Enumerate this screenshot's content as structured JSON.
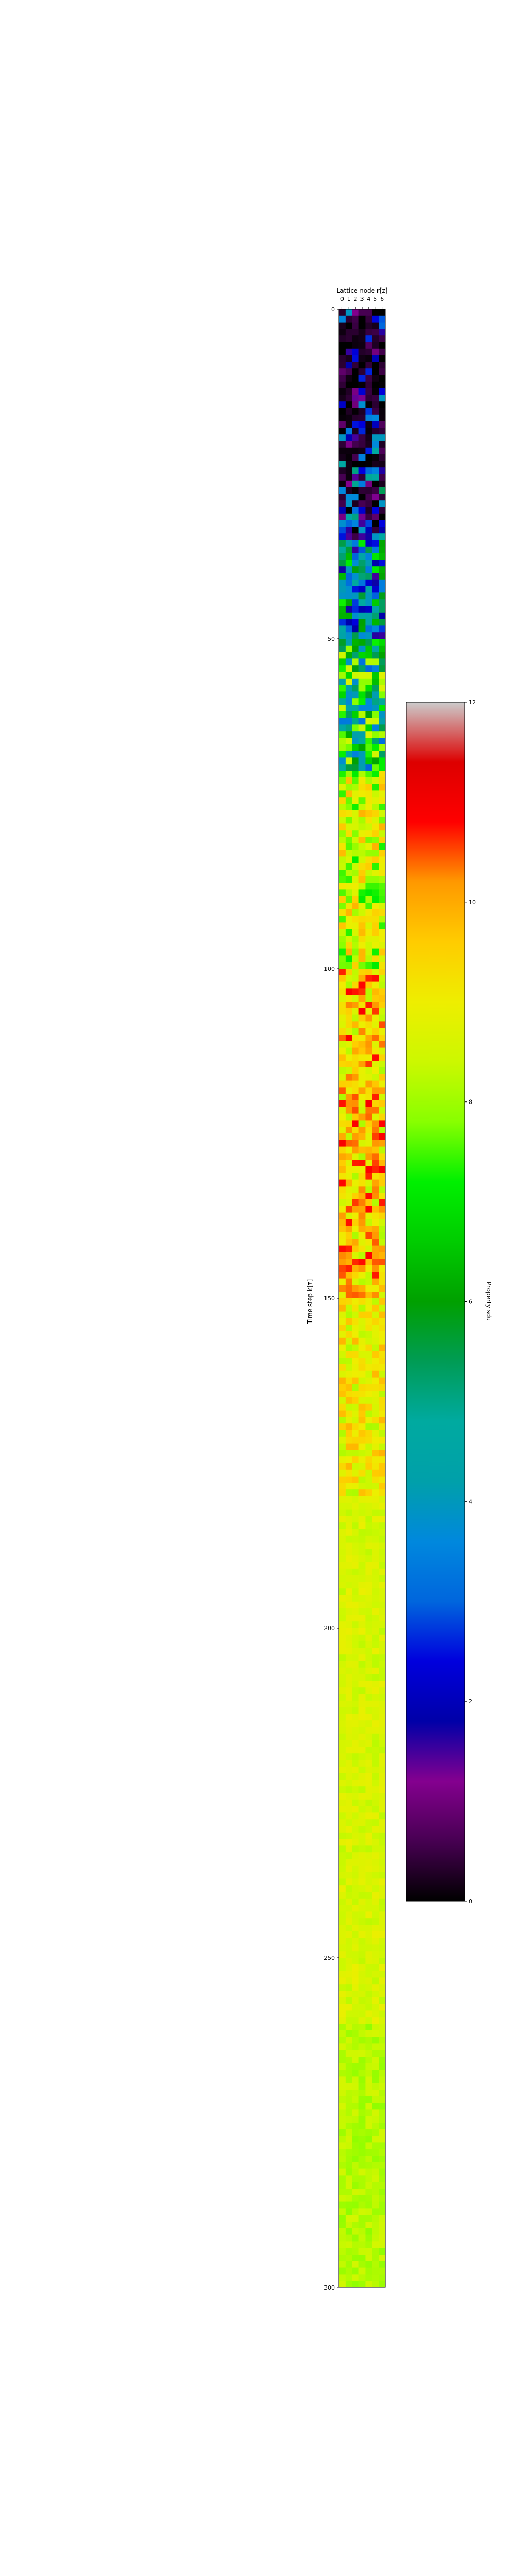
{
  "chart_data": {
    "type": "heatmap",
    "title": "",
    "xlabel": "Lattice node r[z]",
    "ylabel": "Time step k[τ]",
    "x_ticks": [
      "0",
      "1",
      "2",
      "3",
      "4",
      "5",
      "6"
    ],
    "y_ticks": [
      "0",
      "50",
      "100",
      "150",
      "200",
      "250",
      "300"
    ],
    "x_axis_position": "top",
    "grid": false,
    "n_nodes": 7,
    "n_steps": 300,
    "colorbar": {
      "label": "Property sdu",
      "vmin": 0,
      "vmax": 12,
      "ticks": [
        "0",
        "2",
        "4",
        "6",
        "8",
        "10",
        "12"
      ],
      "colormap": "nipy_spectral",
      "placement": "right"
    },
    "value_profile": {
      "description_of_rows": "mean cell value per time-step band (data units)",
      "bands": [
        {
          "k_start": 0,
          "k_end": 20,
          "mean_value": 1.0
        },
        {
          "k_start": 20,
          "k_end": 35,
          "mean_value": 2.5
        },
        {
          "k_start": 35,
          "k_end": 50,
          "mean_value": 4.5
        },
        {
          "k_start": 50,
          "k_end": 70,
          "mean_value": 6.0
        },
        {
          "k_start": 70,
          "k_end": 100,
          "mean_value": 8.5
        },
        {
          "k_start": 100,
          "k_end": 150,
          "mean_value": 9.5
        },
        {
          "k_start": 150,
          "k_end": 180,
          "mean_value": 9.0
        },
        {
          "k_start": 180,
          "k_end": 260,
          "mean_value": 8.6
        },
        {
          "k_start": 260,
          "k_end": 300,
          "mean_value": 8.2
        }
      ]
    }
  }
}
